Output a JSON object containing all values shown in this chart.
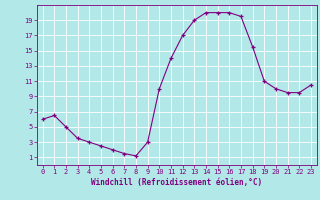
{
  "hours": [
    0,
    1,
    2,
    3,
    4,
    5,
    6,
    7,
    8,
    9,
    10,
    11,
    12,
    13,
    14,
    15,
    16,
    17,
    18,
    19,
    20,
    21,
    22,
    23
  ],
  "values": [
    6.0,
    6.5,
    5.0,
    3.5,
    3.0,
    2.5,
    2.0,
    1.5,
    1.2,
    3.0,
    10.0,
    14.0,
    17.0,
    19.0,
    20.0,
    20.0,
    20.0,
    19.5,
    15.5,
    11.0,
    10.0,
    9.5,
    9.5,
    10.5
  ],
  "line_color": "#800080",
  "marker": "+",
  "bg_color": "#b3e8e8",
  "grid_color": "#ffffff",
  "xlabel": "Windchill (Refroidissement éolien,°C)",
  "xlabel_color": "#800080",
  "tick_color": "#800080",
  "axis_color": "#800080",
  "ylim": [
    0,
    21
  ],
  "xlim": [
    -0.5,
    23.5
  ],
  "yticks": [
    1,
    3,
    5,
    7,
    9,
    11,
    13,
    15,
    17,
    19
  ],
  "xticks": [
    0,
    1,
    2,
    3,
    4,
    5,
    6,
    7,
    8,
    9,
    10,
    11,
    12,
    13,
    14,
    15,
    16,
    17,
    18,
    19,
    20,
    21,
    22,
    23
  ]
}
